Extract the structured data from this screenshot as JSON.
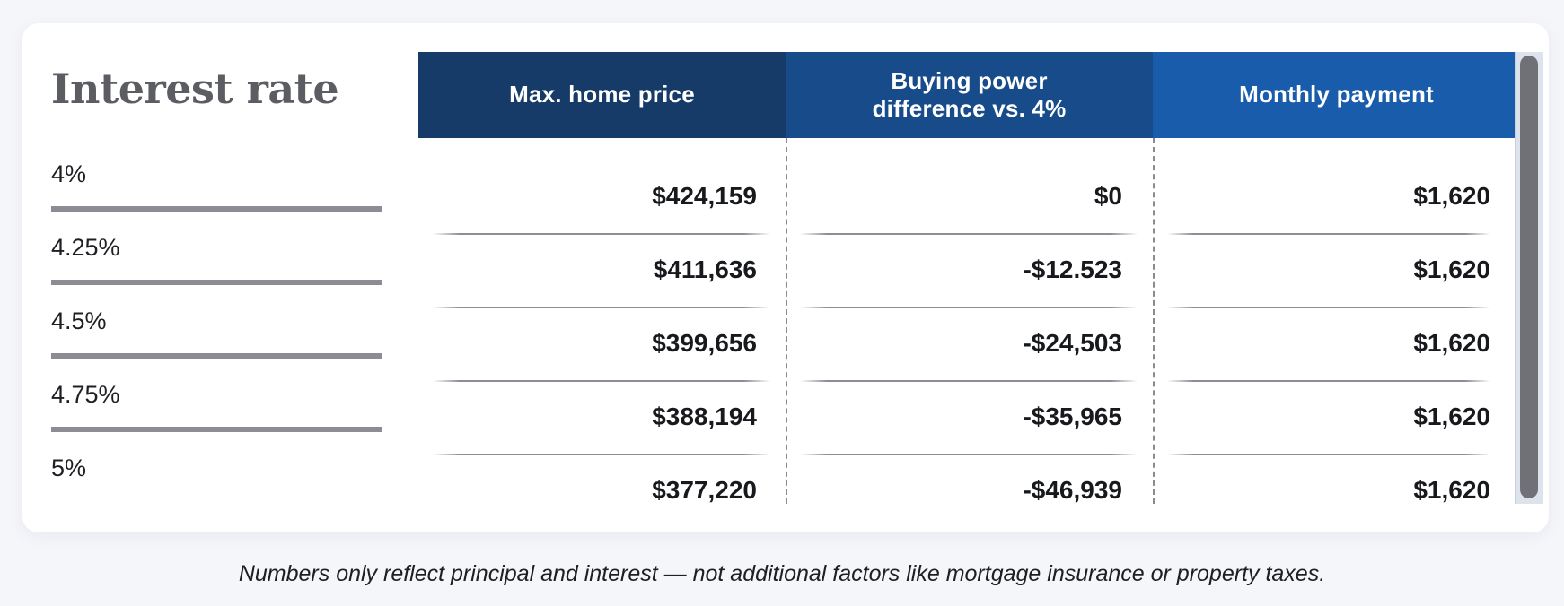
{
  "rates": {
    "title": "Interest rate",
    "items": [
      "4%",
      "4.25%",
      "4.5%",
      "4.75%",
      "5%"
    ]
  },
  "table": {
    "headers": [
      "Max. home price",
      "Buying power\ndifference vs. 4%",
      "Monthly payment"
    ],
    "header_colors": [
      "#173b69",
      "#184b8a",
      "#1a5cac"
    ],
    "rows": [
      [
        "$424,159",
        "$0",
        "$1,620"
      ],
      [
        "$411,636",
        "-$12.523",
        "$1,620"
      ],
      [
        "$399,656",
        "-$24,503",
        "$1,620"
      ],
      [
        "$388,194",
        "-$35,965",
        "$1,620"
      ],
      [
        "$377,220",
        "-$46,939",
        "$1,620"
      ]
    ]
  },
  "footnote": "Numbers only reflect principal and interest — not additional factors like mortgage insurance or property taxes."
}
